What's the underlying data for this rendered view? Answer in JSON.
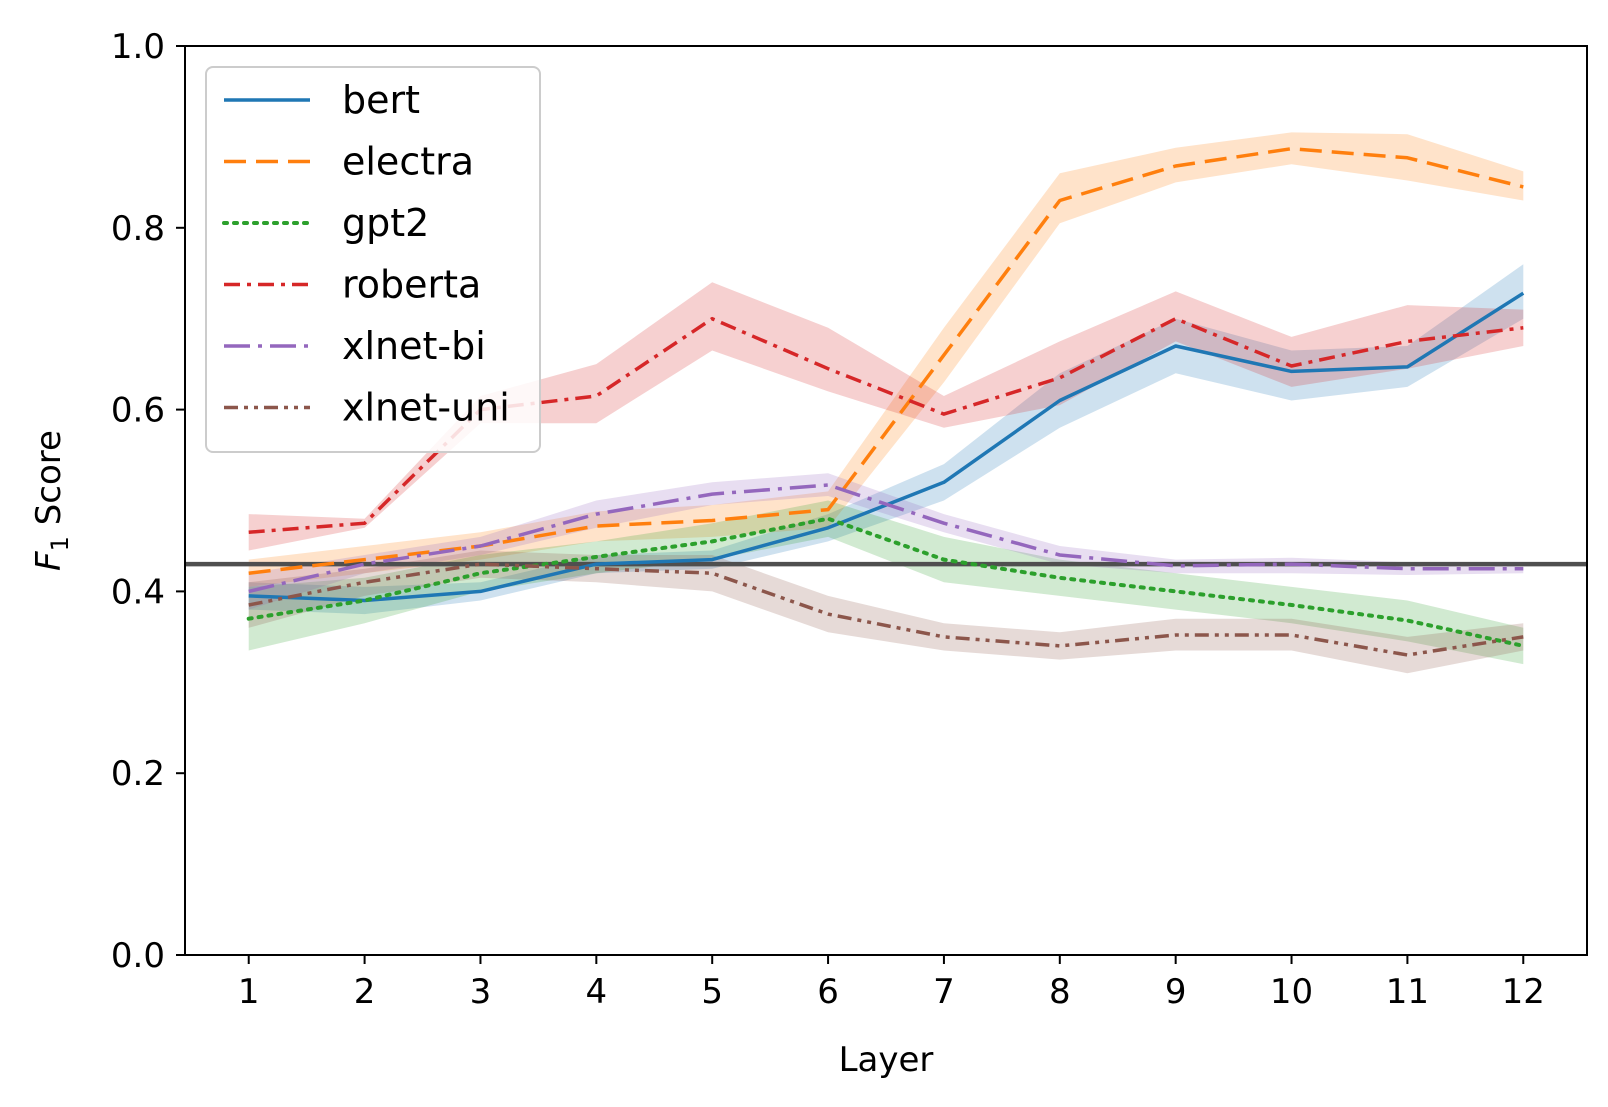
{
  "chart_data": {
    "type": "line",
    "x": [
      1,
      2,
      3,
      4,
      5,
      6,
      7,
      8,
      9,
      10,
      11,
      12
    ],
    "tick_labels_x": [
      "1",
      "2",
      "3",
      "4",
      "5",
      "6",
      "7",
      "8",
      "9",
      "10",
      "11",
      "12"
    ],
    "tick_labels_y": [
      "0.0",
      "0.2",
      "0.4",
      "0.6",
      "0.8",
      "1.0"
    ],
    "xlabel": "Layer",
    "ylabel": {
      "prefix": "F",
      "subscript": "1",
      "suffix": " Score"
    },
    "xlim": [
      0.45,
      12.55
    ],
    "ylim": [
      0,
      1
    ],
    "legend_position": "top-left",
    "grid": false,
    "reference_line": {
      "y": 0.43,
      "color": "#4f4f4f"
    },
    "series": [
      {
        "name": "bert",
        "color": "#1f77b4",
        "style": "solid",
        "values": [
          0.395,
          0.39,
          0.4,
          0.43,
          0.435,
          0.47,
          0.52,
          0.61,
          0.67,
          0.642,
          0.647,
          0.728
        ],
        "lower": [
          0.38,
          0.375,
          0.39,
          0.42,
          0.425,
          0.455,
          0.5,
          0.58,
          0.64,
          0.61,
          0.625,
          0.7
        ],
        "upper": [
          0.41,
          0.405,
          0.41,
          0.44,
          0.445,
          0.485,
          0.54,
          0.64,
          0.7,
          0.665,
          0.67,
          0.76
        ]
      },
      {
        "name": "electra",
        "color": "#ff7f0e",
        "style": "dashed",
        "values": [
          0.42,
          0.435,
          0.45,
          0.472,
          0.478,
          0.49,
          0.66,
          0.83,
          0.868,
          0.887,
          0.877,
          0.845
        ],
        "lower": [
          0.405,
          0.42,
          0.435,
          0.455,
          0.46,
          0.47,
          0.63,
          0.805,
          0.85,
          0.87,
          0.852,
          0.83
        ],
        "upper": [
          0.435,
          0.45,
          0.465,
          0.488,
          0.495,
          0.51,
          0.69,
          0.86,
          0.888,
          0.905,
          0.903,
          0.862
        ]
      },
      {
        "name": "gpt2",
        "color": "#2ca02c",
        "style": "dotted",
        "values": [
          0.37,
          0.39,
          0.42,
          0.438,
          0.455,
          0.48,
          0.435,
          0.415,
          0.4,
          0.385,
          0.368,
          0.34
        ],
        "lower": [
          0.335,
          0.365,
          0.4,
          0.42,
          0.435,
          0.46,
          0.41,
          0.395,
          0.38,
          0.365,
          0.345,
          0.32
        ],
        "upper": [
          0.405,
          0.415,
          0.44,
          0.455,
          0.475,
          0.5,
          0.46,
          0.435,
          0.42,
          0.405,
          0.39,
          0.36
        ]
      },
      {
        "name": "roberta",
        "color": "#d62728",
        "style": "dashdot",
        "values": [
          0.465,
          0.475,
          0.6,
          0.615,
          0.7,
          0.645,
          0.595,
          0.635,
          0.7,
          0.648,
          0.675,
          0.69
        ],
        "lower": [
          0.445,
          0.47,
          0.585,
          0.585,
          0.665,
          0.62,
          0.58,
          0.605,
          0.675,
          0.625,
          0.645,
          0.67
        ],
        "upper": [
          0.485,
          0.48,
          0.615,
          0.65,
          0.74,
          0.69,
          0.615,
          0.675,
          0.73,
          0.68,
          0.715,
          0.71
        ]
      },
      {
        "name": "xlnet-bi",
        "color": "#9467bd",
        "style": "longdashdot",
        "values": [
          0.4,
          0.43,
          0.45,
          0.485,
          0.507,
          0.517,
          0.475,
          0.44,
          0.428,
          0.43,
          0.425,
          0.425
        ],
        "lower": [
          0.38,
          0.42,
          0.44,
          0.47,
          0.495,
          0.505,
          0.465,
          0.43,
          0.42,
          0.42,
          0.418,
          0.42
        ],
        "upper": [
          0.42,
          0.44,
          0.46,
          0.5,
          0.52,
          0.53,
          0.485,
          0.45,
          0.435,
          0.437,
          0.432,
          0.43
        ]
      },
      {
        "name": "xlnet-uni",
        "color": "#8c564b",
        "style": "dashdotdot",
        "values": [
          0.385,
          0.41,
          0.43,
          0.425,
          0.42,
          0.375,
          0.35,
          0.34,
          0.352,
          0.352,
          0.33,
          0.35
        ],
        "lower": [
          0.36,
          0.395,
          0.415,
          0.41,
          0.4,
          0.355,
          0.335,
          0.325,
          0.335,
          0.335,
          0.31,
          0.335
        ],
        "upper": [
          0.41,
          0.425,
          0.445,
          0.44,
          0.44,
          0.395,
          0.365,
          0.355,
          0.37,
          0.37,
          0.35,
          0.365
        ]
      }
    ]
  }
}
